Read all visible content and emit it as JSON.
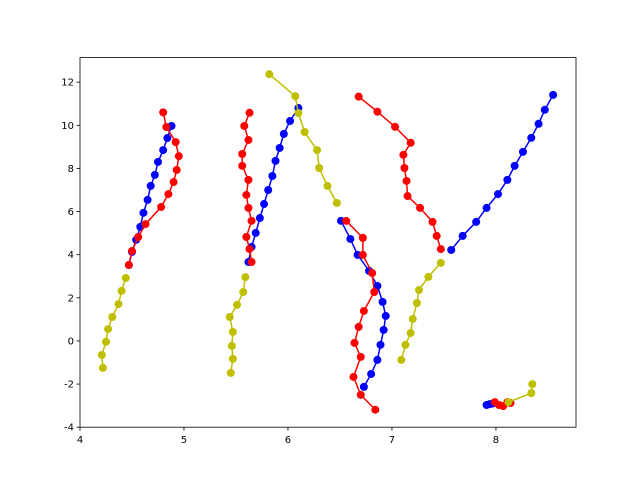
{
  "chart_data": {
    "type": "line",
    "xlim": [
      4.0,
      8.77
    ],
    "ylim": [
      -4,
      13.14
    ],
    "xticks": [
      4,
      5,
      6,
      7,
      8
    ],
    "yticks": [
      -4,
      -2,
      0,
      2,
      4,
      6,
      8,
      10,
      12
    ],
    "series": [
      {
        "color": "#bfbf00",
        "x": [
          4.22,
          4.21,
          4.25,
          4.27,
          4.31,
          4.37,
          4.4,
          4.44
        ],
        "values": [
          -1.25,
          -0.65,
          -0.04,
          0.55,
          1.11,
          1.71,
          2.32,
          2.92
        ]
      },
      {
        "color": "#0000ff",
        "x": [
          4.47,
          4.5,
          4.54,
          4.58,
          4.61,
          4.65,
          4.68,
          4.72,
          4.75,
          4.8,
          4.84,
          4.88
        ],
        "values": [
          3.52,
          4.13,
          4.69,
          5.29,
          5.94,
          6.54,
          7.19,
          7.7,
          8.3,
          8.85,
          9.41,
          9.97
        ]
      },
      {
        "color": "#ff0000",
        "x": [
          4.8,
          4.83,
          4.92,
          4.95,
          4.93,
          4.9,
          4.85,
          4.78,
          4.63,
          4.56,
          4.5,
          4.47
        ],
        "values": [
          10.6,
          9.92,
          9.22,
          8.57,
          7.93,
          7.37,
          6.81,
          6.21,
          5.42,
          4.82,
          4.17,
          3.52
        ]
      },
      {
        "color": "#bfbf00",
        "x": [
          5.45,
          5.47,
          5.46,
          5.47,
          5.44,
          5.51,
          5.57,
          5.59
        ],
        "values": [
          -1.48,
          -0.83,
          -0.23,
          0.42,
          1.11,
          1.67,
          2.27,
          2.96
        ]
      },
      {
        "color": "#0000ff",
        "x": [
          5.62,
          5.65,
          5.69,
          5.73,
          5.77,
          5.81,
          5.85,
          5.88,
          5.92,
          5.96,
          6.02,
          6.1
        ],
        "values": [
          3.66,
          4.36,
          5.01,
          5.7,
          6.35,
          7.0,
          7.65,
          8.35,
          8.95,
          9.6,
          10.2,
          10.8
        ]
      },
      {
        "color": "#ff0000",
        "x": [
          5.63,
          5.58,
          5.62,
          5.56,
          5.56,
          5.62,
          5.6,
          5.62,
          5.65,
          5.6,
          5.63,
          5.65
        ],
        "values": [
          10.58,
          9.97,
          9.32,
          8.67,
          8.12,
          7.47,
          6.77,
          6.17,
          5.57,
          4.82,
          4.26,
          3.66
        ]
      },
      {
        "color": "#bfbf00",
        "x": [
          5.82,
          6.07,
          6.1,
          6.16,
          6.28,
          6.3,
          6.38,
          6.47
        ],
        "values": [
          12.37,
          11.35,
          10.57,
          9.69,
          8.85,
          8.02,
          7.19,
          6.4
        ]
      },
      {
        "color": "#0000ff",
        "x": [
          6.51,
          6.6,
          6.67,
          6.78,
          6.86,
          6.91,
          6.94,
          6.92,
          6.89,
          6.86,
          6.8,
          6.73
        ],
        "values": [
          5.57,
          4.73,
          3.99,
          3.25,
          2.55,
          1.81,
          1.16,
          0.51,
          -0.18,
          -0.88,
          -1.53,
          -2.13
        ]
      },
      {
        "color": "#ff0000",
        "x": [
          6.68,
          6.86,
          7.03,
          7.18,
          7.11,
          7.12,
          7.14,
          7.15,
          7.27,
          7.39,
          7.43,
          7.47
        ],
        "values": [
          11.33,
          10.63,
          9.93,
          9.19,
          8.63,
          8.02,
          7.42,
          6.72,
          6.17,
          5.52,
          4.87,
          4.26
        ]
      },
      {
        "color": "#ff0000",
        "x": [
          6.56,
          6.72,
          6.72,
          6.81,
          6.83,
          6.73,
          6.68,
          6.64,
          6.7,
          6.63,
          6.7,
          6.84
        ],
        "values": [
          5.57,
          4.78,
          3.99,
          3.15,
          2.27,
          1.39,
          0.65,
          -0.09,
          -0.74,
          -1.67,
          -2.5,
          -3.19
        ]
      },
      {
        "color": "#bfbf00",
        "x": [
          7.09,
          7.13,
          7.18,
          7.2,
          7.24,
          7.26,
          7.35,
          7.47
        ],
        "values": [
          -0.88,
          -0.18,
          0.37,
          1.02,
          1.76,
          2.36,
          2.97,
          3.62
        ]
      },
      {
        "color": "#0000ff",
        "x": [
          7.57,
          7.68,
          7.81,
          7.91,
          8.02,
          8.11,
          8.18,
          8.26,
          8.34,
          8.41,
          8.47,
          8.55
        ],
        "values": [
          4.22,
          4.87,
          5.52,
          6.17,
          6.81,
          7.47,
          8.12,
          8.77,
          9.42,
          10.07,
          10.72,
          11.41
        ]
      },
      {
        "color": "#0000ff",
        "x": [
          7.91,
          7.94,
          7.97
        ],
        "values": [
          -2.97,
          -2.93,
          -2.9
        ]
      },
      {
        "color": "#ff0000",
        "x": [
          7.99,
          8.03,
          8.07,
          8.11,
          8.14
        ],
        "values": [
          -2.84,
          -2.97,
          -3.02,
          -2.84,
          -2.88
        ]
      },
      {
        "color": "#bfbf00",
        "x": [
          8.35,
          8.34,
          8.12
        ],
        "values": [
          -2.0,
          -2.42,
          -2.84
        ]
      }
    ]
  }
}
